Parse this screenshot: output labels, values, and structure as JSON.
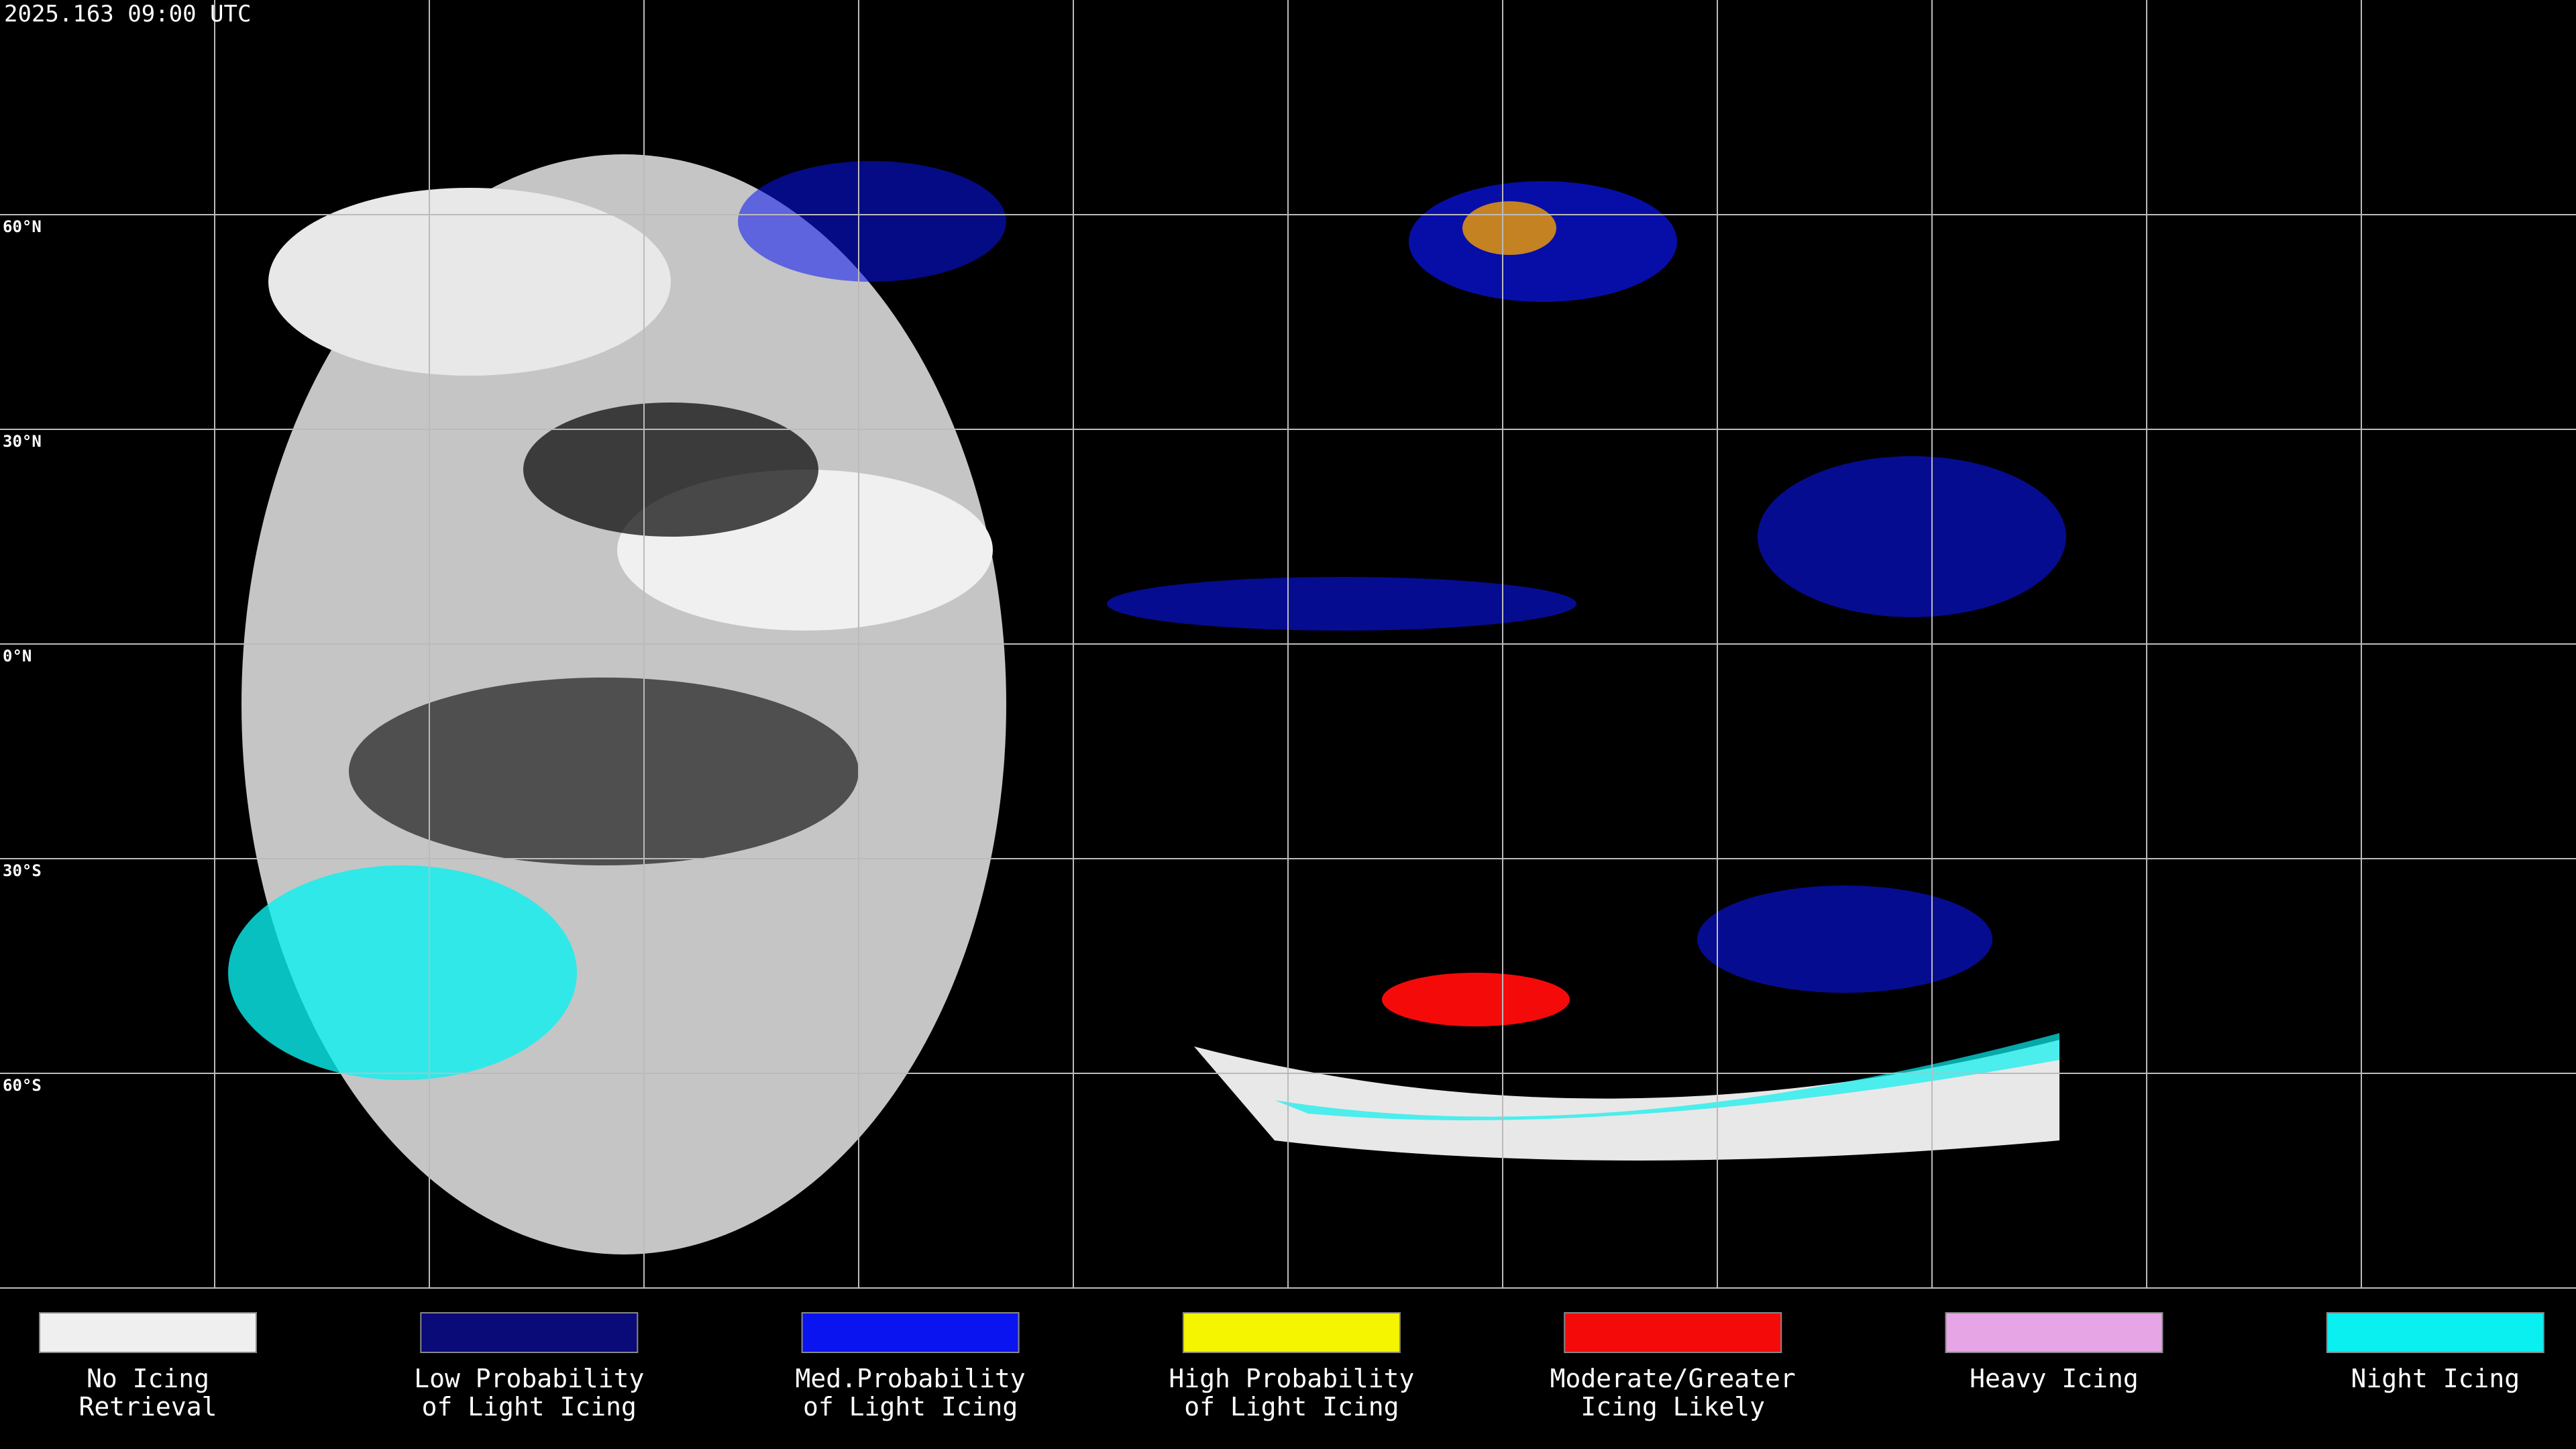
{
  "timestamp": "2025.163 09:00 UTC",
  "latitude_labels": [
    "60°N",
    "30°N",
    "0°N",
    "30°S",
    "60°S"
  ],
  "legend": [
    {
      "color": "#efefef",
      "lines": [
        "No Icing",
        "Retrieval"
      ]
    },
    {
      "color": "#0a0a78",
      "lines": [
        "Low Probability",
        "of Light Icing"
      ]
    },
    {
      "color": "#0a14f0",
      "lines": [
        "Med.Probability",
        "of Light Icing"
      ]
    },
    {
      "color": "#f5f500",
      "lines": [
        "High Probability",
        "of Light Icing"
      ]
    },
    {
      "color": "#f50a0a",
      "lines": [
        "Moderate/Greater",
        "Icing Likely"
      ]
    },
    {
      "color": "#e6a6e6",
      "lines": [
        "Heavy Icing"
      ]
    },
    {
      "color": "#0af0f0",
      "lines": [
        "Night Icing"
      ]
    }
  ]
}
